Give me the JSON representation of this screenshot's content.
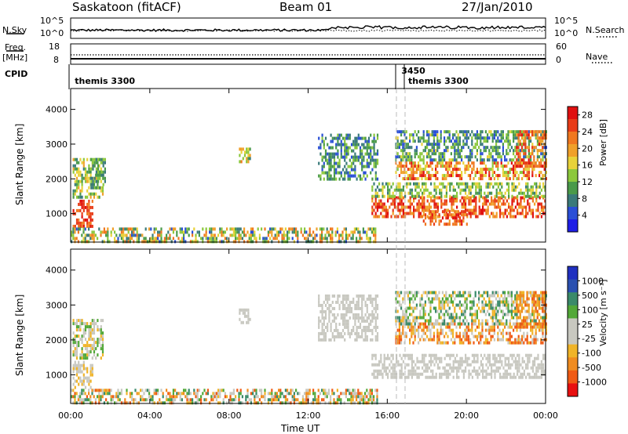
{
  "header": {
    "station": "Saskatoon (fitACF)",
    "beam": "Beam 01",
    "date": "27/Jan/2010"
  },
  "panels": {
    "nsky_label": "N.Sky",
    "nsearch_label": "N.Search",
    "noise_ticks": [
      "10^5",
      "10^0"
    ],
    "freq_label_1": "Freq.",
    "freq_label_2": "[MHz]",
    "freq_ticks": [
      "18",
      "8"
    ],
    "nave_label": "Nave",
    "nave_ticks": [
      "60",
      "0"
    ],
    "cpid_label": "CPID",
    "cpid_entries": [
      {
        "text": "themis 3300",
        "hour": 0.05
      },
      {
        "text": "3450",
        "hour": 16.55
      },
      {
        "text": "themis 3300",
        "hour": 16.9
      }
    ]
  },
  "colors": {
    "power": [
      "#1e1ee6",
      "#2a4fd6",
      "#3a7a7a",
      "#4a9a4a",
      "#8cc83c",
      "#e8d23a",
      "#f0a02a",
      "#f07820",
      "#e83c18",
      "#e01010"
    ],
    "velocity": [
      "#2030c0",
      "#2a50b0",
      "#3a8a6a",
      "#52a838",
      "#c8c8c0",
      "#c8c8c0",
      "#f0b428",
      "#f08c20",
      "#f05a14",
      "#e81010"
    ]
  },
  "chart_data": [
    {
      "type": "heatmap",
      "name": "power",
      "xlabel": "Time UT",
      "ylabel": "Slant Range [km]",
      "xlim": [
        0,
        24
      ],
      "ylim": [
        180,
        4600
      ],
      "xticks": [
        "00:00",
        "04:00",
        "08:00",
        "12:00",
        "16:00",
        "20:00",
        "00:00"
      ],
      "xtick_hours": [
        0,
        4,
        8,
        12,
        16,
        20,
        24
      ],
      "yticks": [
        1000,
        2000,
        3000,
        4000
      ],
      "colorbar": {
        "label": "Power [dB]",
        "ticks": [
          4,
          8,
          12,
          16,
          20,
          24,
          28
        ],
        "range": [
          0,
          30
        ]
      },
      "regions": [
        {
          "t": [
            0.1,
            1.1
          ],
          "r": [
            600,
            1400
          ],
          "v": [
            22,
            28
          ]
        },
        {
          "t": [
            0.1,
            1.6
          ],
          "r": [
            1500,
            2600
          ],
          "v": [
            8,
            20
          ]
        },
        {
          "t": [
            1.0,
            1.7
          ],
          "r": [
            1700,
            2600
          ],
          "v": [
            6,
            14
          ]
        },
        {
          "t": [
            0.0,
            15.5
          ],
          "r": [
            200,
            600
          ],
          "v": [
            4,
            24
          ]
        },
        {
          "t": [
            8.5,
            9.1
          ],
          "r": [
            2500,
            2900
          ],
          "v": [
            8,
            22
          ]
        },
        {
          "t": [
            12.5,
            15.5
          ],
          "r": [
            2000,
            3300
          ],
          "v": [
            4,
            14
          ]
        },
        {
          "t": [
            15.2,
            24.0
          ],
          "r": [
            900,
            1500
          ],
          "v": [
            18,
            30
          ]
        },
        {
          "t": [
            15.2,
            24.0
          ],
          "r": [
            1500,
            1900
          ],
          "v": [
            8,
            18
          ]
        },
        {
          "t": [
            16.4,
            24.0
          ],
          "r": [
            2000,
            2500
          ],
          "v": [
            14,
            28
          ]
        },
        {
          "t": [
            16.4,
            24.0
          ],
          "r": [
            2500,
            3400
          ],
          "v": [
            4,
            16
          ]
        },
        {
          "t": [
            22.5,
            24.0
          ],
          "r": [
            2400,
            3400
          ],
          "v": [
            18,
            28
          ]
        },
        {
          "t": [
            17.8,
            20.0
          ],
          "r": [
            700,
            1100
          ],
          "v": [
            18,
            28
          ]
        }
      ]
    },
    {
      "type": "heatmap",
      "name": "velocity",
      "xlabel": "Time UT",
      "ylabel": "Slant Range [km]",
      "xlim": [
        0,
        24
      ],
      "ylim": [
        180,
        4600
      ],
      "xticks": [
        "00:00",
        "04:00",
        "08:00",
        "12:00",
        "16:00",
        "20:00",
        "00:00"
      ],
      "xtick_hours": [
        0,
        4,
        8,
        12,
        16,
        20,
        24
      ],
      "yticks": [
        1000,
        2000,
        3000,
        4000
      ],
      "colorbar": {
        "label": "Velocity [m s⁻¹]",
        "ticks": [
          "1000",
          "500",
          "100",
          "25",
          "-25",
          "-100",
          "-500",
          "-1000"
        ]
      },
      "regions": [
        {
          "t": [
            0.1,
            1.1
          ],
          "r": [
            600,
            1400
          ],
          "v": [
            4,
            6
          ]
        },
        {
          "t": [
            0.1,
            1.6
          ],
          "r": [
            1500,
            2600
          ],
          "v": [
            3,
            6
          ]
        },
        {
          "t": [
            0.0,
            15.5
          ],
          "r": [
            200,
            600
          ],
          "v": [
            2,
            8
          ]
        },
        {
          "t": [
            8.5,
            9.1
          ],
          "r": [
            2500,
            2900
          ],
          "v": [
            4,
            5
          ]
        },
        {
          "t": [
            12.5,
            15.5
          ],
          "r": [
            2000,
            3300
          ],
          "v": [
            4,
            5
          ]
        },
        {
          "t": [
            15.2,
            24.0
          ],
          "r": [
            900,
            1600
          ],
          "v": [
            4,
            5
          ]
        },
        {
          "t": [
            16.4,
            24.0
          ],
          "r": [
            1900,
            2500
          ],
          "v": [
            5,
            8
          ]
        },
        {
          "t": [
            16.4,
            24.0
          ],
          "r": [
            2500,
            3400
          ],
          "v": [
            2,
            6
          ]
        },
        {
          "t": [
            22.5,
            24.0
          ],
          "r": [
            2400,
            3400
          ],
          "v": [
            6,
            8
          ]
        }
      ]
    }
  ]
}
